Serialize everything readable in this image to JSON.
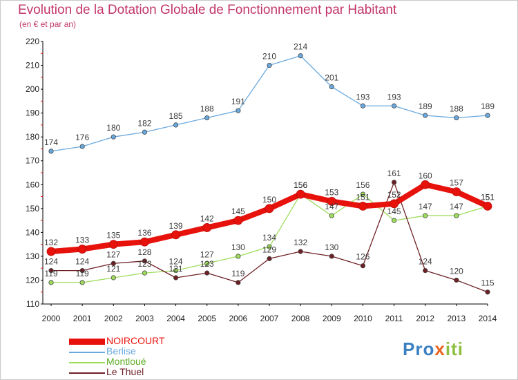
{
  "title": "Evolution de la Dotation Globale de Fonctionnement par Habitant",
  "subtitle": "(en € et par an)",
  "logo": {
    "text": "Proxiti",
    "letters": [
      "P",
      "r",
      "o",
      "x",
      "i",
      "t",
      "i"
    ],
    "colors": [
      "#3a7fc1",
      "#3a7fc1",
      "#3a7fc1",
      "#e8641e",
      "#8cbf3f",
      "#8cbf3f",
      "#8cbf3f"
    ]
  },
  "chart_data": {
    "type": "line",
    "title": "Evolution de la Dotation Globale de Fonctionnement par Habitant",
    "ylabel": "(en € et par an)",
    "xlabel": "",
    "ylim": [
      110,
      220
    ],
    "yticks": [
      110,
      120,
      130,
      140,
      150,
      160,
      170,
      180,
      190,
      200,
      210,
      220
    ],
    "grid": false,
    "legend_position": "bottom-left",
    "x": [
      "2000",
      "2001",
      "2002",
      "2003",
      "2004",
      "2005",
      "2006",
      "2007",
      "2008",
      "2009",
      "2010",
      "2011",
      "2012",
      "2013",
      "2014"
    ],
    "series": [
      {
        "name": "NOIRCOURT",
        "color": "#e8120c",
        "values": [
          132,
          133,
          135,
          136,
          139,
          142,
          145,
          150,
          156,
          153,
          151,
          152,
          160,
          157,
          151
        ]
      },
      {
        "name": "Berlise",
        "color": "#6aa9de",
        "values": [
          174,
          176,
          180,
          182,
          185,
          188,
          191,
          210,
          214,
          201,
          193,
          193,
          189,
          188,
          189
        ]
      },
      {
        "name": "Montloué",
        "color": "#9edc5c",
        "values": [
          119,
          119,
          121,
          123,
          124,
          127,
          130,
          134,
          156,
          147,
          156,
          145,
          147,
          147,
          151
        ]
      },
      {
        "name": "Le Thuel",
        "color": "#6e1f24",
        "values": [
          124,
          124,
          127,
          128,
          121,
          123,
          119,
          129,
          132,
          130,
          126,
          161,
          124,
          120,
          115
        ]
      }
    ]
  }
}
